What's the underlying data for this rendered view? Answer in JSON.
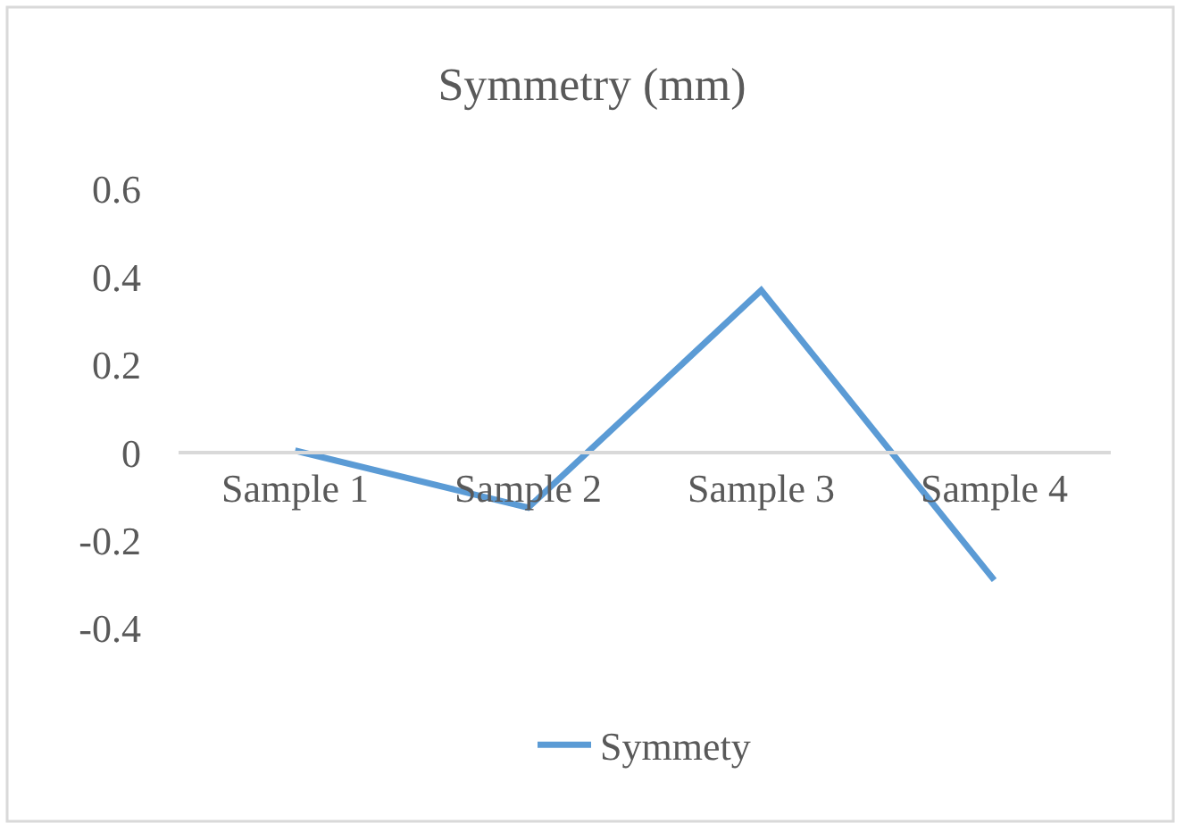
{
  "chart_data": {
    "type": "line",
    "title": "Symmetry (mm)",
    "categories": [
      "Sample 1",
      "Sample 2",
      "Sample 3",
      "Sample 4"
    ],
    "series": [
      {
        "name": "Symmety",
        "color": "#5b9bd5",
        "values": [
          0.005,
          -0.125,
          0.37,
          -0.29
        ]
      }
    ],
    "ylim": [
      -0.4,
      0.6
    ],
    "yticks": [
      {
        "value": -0.4,
        "label": "-0.4"
      },
      {
        "value": -0.2,
        "label": "-0.2"
      },
      0,
      0.2,
      0.4,
      0.6
    ],
    "grid": false,
    "legend": "bottom",
    "marker": "none",
    "line_style": "solid"
  }
}
